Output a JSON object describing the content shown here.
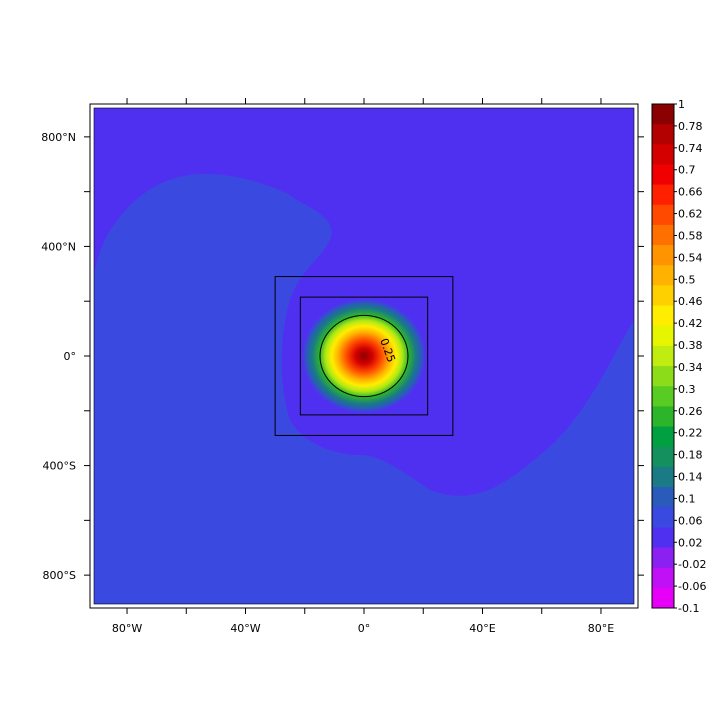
{
  "chart_data": {
    "type": "heatmap",
    "title": "",
    "x_ticks": [
      {
        "value": -80,
        "label": "80°W"
      },
      {
        "value": -40,
        "label": "40°W"
      },
      {
        "value": 0,
        "label": "0°"
      },
      {
        "value": 40,
        "label": "40°E"
      },
      {
        "value": 80,
        "label": "80°E"
      }
    ],
    "y_ticks": [
      {
        "value": 800,
        "label": "800°N"
      },
      {
        "value": 400,
        "label": "400°N"
      },
      {
        "value": 0,
        "label": "0°"
      },
      {
        "value": -400,
        "label": "400°S"
      },
      {
        "value": -800,
        "label": "800°S"
      }
    ],
    "xlim": [
      -92.5,
      92.5
    ],
    "ylim": [
      -920,
      920
    ],
    "field": {
      "background_value": 0.02,
      "peak_value": 1.0,
      "peak_center": [
        0,
        0
      ],
      "peak_radius_x": 11,
      "peak_radius_y": 110,
      "low_region_value": 0.0
    },
    "contour": {
      "level": 0.25,
      "label": "0.25"
    },
    "boxes": [
      {
        "x0": -30,
        "x1": 30,
        "y0": -290,
        "y1": 290
      },
      {
        "x0": -21.5,
        "x1": 21.5,
        "y0": -215,
        "y1": 215
      }
    ],
    "colorbar": {
      "labels": [
        "1",
        "0.78",
        "0.74",
        "0.7",
        "0.66",
        "0.62",
        "0.58",
        "0.54",
        "0.5",
        "0.46",
        "0.42",
        "0.38",
        "0.34",
        "0.3",
        "0.26",
        "0.22",
        "0.18",
        "0.14",
        "0.1",
        "0.06",
        "0.02",
        "-0.02",
        "-0.06",
        "-0.1"
      ],
      "colors": [
        "#8b0000",
        "#b30000",
        "#d40000",
        "#f00000",
        "#ff2000",
        "#ff4a00",
        "#ff7000",
        "#ff9400",
        "#ffb200",
        "#ffd000",
        "#ffee00",
        "#e6f500",
        "#c0ec10",
        "#8cdc1a",
        "#58cc22",
        "#2cb52a",
        "#00a040",
        "#14905e",
        "#1a7a86",
        "#2a5aba",
        "#3a4ae0",
        "#5030f0",
        "#8a20f2",
        "#c010f5",
        "#e600f8"
      ]
    }
  }
}
